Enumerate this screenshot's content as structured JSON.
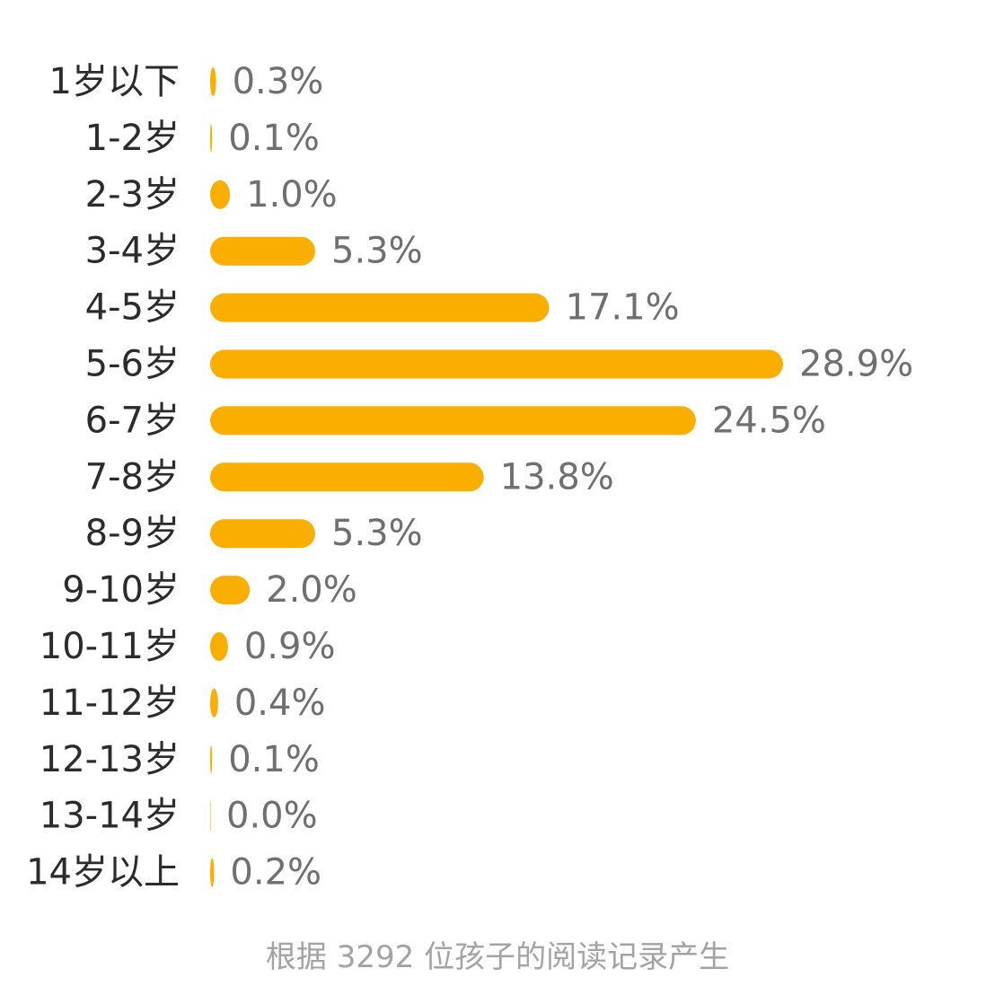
{
  "chart_data": {
    "type": "bar",
    "orientation": "horizontal",
    "categories": [
      "1岁以下",
      "1-2岁",
      "2-3岁",
      "3-4岁",
      "4-5岁",
      "5-6岁",
      "6-7岁",
      "7-8岁",
      "8-9岁",
      "9-10岁",
      "10-11岁",
      "11-12岁",
      "12-13岁",
      "13-14岁",
      "14岁以上"
    ],
    "values": [
      0.3,
      0.1,
      1.0,
      5.3,
      17.1,
      28.9,
      24.5,
      13.8,
      5.3,
      2.0,
      0.9,
      0.4,
      0.1,
      0.0,
      0.2
    ],
    "data_labels": [
      "0.3%",
      "0.1%",
      "1.0%",
      "5.3%",
      "17.1%",
      "28.9%",
      "24.5%",
      "13.8%",
      "5.3%",
      "2.0%",
      "0.9%",
      "0.4%",
      "0.1%",
      "0.0%",
      "0.2%"
    ],
    "unit": "%",
    "xlim": [
      0,
      28.9
    ],
    "grid": false,
    "legend": "none",
    "bar_color": "#f9ae00"
  },
  "footnote": "根据 3292 位孩子的阅读记录产生"
}
